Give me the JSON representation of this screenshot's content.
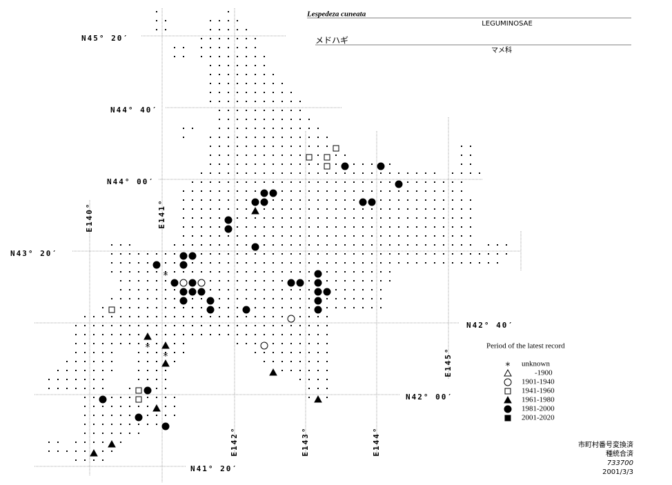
{
  "header": {
    "scientific_name": "Lespedeza cuneata",
    "family": "LEGUMINOSAE",
    "japanese_name": "メドハギ",
    "japanese_family": "マメ科"
  },
  "map": {
    "latitude_labels": [
      "N45° 20′",
      "N44° 40′",
      "N44° 00′",
      "N43° 20′",
      "N42° 40′",
      "N42° 00′",
      "N41° 20′"
    ],
    "longitude_labels": [
      "E140°",
      "E141°",
      "E142°",
      "E143°",
      "E144°",
      "E145°"
    ]
  },
  "legend": {
    "title": "Period of the latest record",
    "items": [
      "unknown",
      "-1900",
      "1901-1940",
      "1941-1960",
      "1961-1980",
      "1981-2000",
      "2001-2020"
    ]
  },
  "footer": {
    "lines": [
      "市町村番号変換済",
      "種統合済",
      "733700",
      "2001/3/3"
    ]
  }
}
